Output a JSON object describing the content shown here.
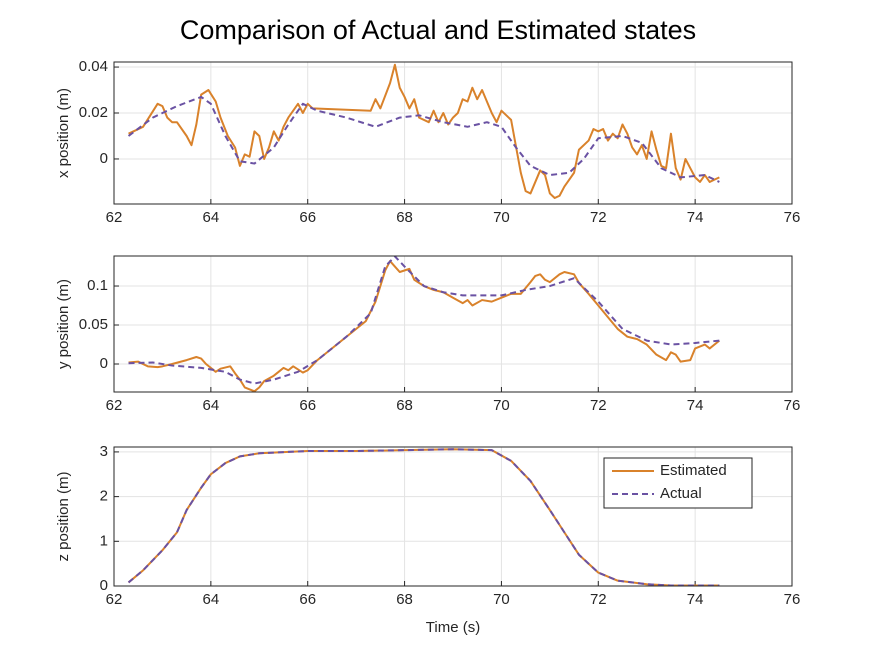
{
  "title": "Comparison of Actual and Estimated states",
  "chart_data": [
    {
      "type": "line",
      "ylabel": "x position (m)",
      "xlim": [
        62,
        76
      ],
      "xticks": [
        62,
        64,
        66,
        68,
        70,
        72,
        74,
        76
      ],
      "ylim": [
        -0.0196,
        0.0422
      ],
      "yticks": [
        0,
        0.02,
        0.04
      ],
      "grid": true,
      "series": [
        {
          "name": "Estimated",
          "color": "#d9822b",
          "style": "solid",
          "x": [
            62.3,
            62.6,
            62.9,
            63.0,
            63.1,
            63.2,
            63.3,
            63.5,
            63.6,
            63.7,
            63.8,
            63.95,
            64.1,
            64.2,
            64.35,
            64.5,
            64.6,
            64.7,
            64.8,
            64.9,
            65.0,
            65.1,
            65.2,
            65.3,
            65.4,
            65.5,
            65.6,
            65.8,
            65.9,
            66.0,
            66.1,
            67.3,
            67.4,
            67.5,
            67.7,
            67.8,
            67.9,
            68.0,
            68.1,
            68.2,
            68.3,
            68.5,
            68.6,
            68.7,
            68.8,
            68.9,
            69.0,
            69.1,
            69.2,
            69.3,
            69.4,
            69.5,
            69.6,
            69.8,
            69.9,
            70.0,
            70.2,
            70.4,
            70.5,
            70.6,
            70.8,
            70.9,
            71.0,
            71.1,
            71.2,
            71.3,
            71.4,
            71.5,
            71.6,
            71.8,
            71.9,
            72.0,
            72.1,
            72.2,
            72.3,
            72.4,
            72.5,
            72.6,
            72.7,
            72.8,
            72.9,
            73.0,
            73.1,
            73.2,
            73.3,
            73.4,
            73.5,
            73.6,
            73.7,
            73.8,
            73.9,
            74.0,
            74.1,
            74.2,
            74.3,
            74.4,
            74.5
          ],
          "values": [
            0.011,
            0.014,
            0.024,
            0.023,
            0.018,
            0.016,
            0.016,
            0.01,
            0.006,
            0.015,
            0.028,
            0.03,
            0.025,
            0.018,
            0.01,
            0.005,
            -0.003,
            0.002,
            0.001,
            0.012,
            0.01,
            0.0,
            0.005,
            0.012,
            0.008,
            0.014,
            0.018,
            0.024,
            0.02,
            0.024,
            0.022,
            0.021,
            0.026,
            0.022,
            0.033,
            0.041,
            0.031,
            0.027,
            0.022,
            0.026,
            0.018,
            0.016,
            0.021,
            0.016,
            0.02,
            0.015,
            0.018,
            0.02,
            0.026,
            0.025,
            0.031,
            0.026,
            0.03,
            0.02,
            0.016,
            0.021,
            0.017,
            -0.006,
            -0.014,
            -0.015,
            -0.005,
            -0.007,
            -0.015,
            -0.017,
            -0.016,
            -0.012,
            -0.009,
            -0.006,
            0.004,
            0.008,
            0.013,
            0.012,
            0.013,
            0.008,
            0.011,
            0.009,
            0.015,
            0.011,
            0.005,
            0.002,
            0.006,
            0.0,
            0.012,
            0.004,
            -0.003,
            -0.004,
            0.011,
            -0.004,
            -0.009,
            0.0,
            -0.004,
            -0.008,
            -0.01,
            -0.007,
            -0.01,
            -0.009,
            -0.008
          ]
        },
        {
          "name": "Actual",
          "color": "#6a52a3",
          "style": "dashed",
          "x": [
            62.3,
            62.8,
            63.3,
            63.8,
            64.0,
            64.3,
            64.6,
            64.9,
            65.3,
            65.6,
            65.9,
            66.2,
            66.8,
            67.4,
            67.9,
            68.3,
            68.8,
            69.3,
            69.7,
            70.0,
            70.3,
            70.6,
            71.0,
            71.4,
            71.7,
            72.0,
            72.5,
            72.9,
            73.3,
            73.7,
            74.2,
            74.5
          ],
          "values": [
            0.01,
            0.018,
            0.023,
            0.027,
            0.024,
            0.01,
            -0.001,
            -0.002,
            0.005,
            0.015,
            0.024,
            0.021,
            0.018,
            0.014,
            0.018,
            0.019,
            0.016,
            0.014,
            0.016,
            0.014,
            0.005,
            -0.003,
            -0.007,
            -0.006,
            0.0,
            0.009,
            0.01,
            0.007,
            -0.004,
            -0.008,
            -0.007,
            -0.01
          ]
        }
      ]
    },
    {
      "type": "line",
      "ylabel": "y position (m)",
      "xlim": [
        62,
        76
      ],
      "xticks": [
        62,
        64,
        66,
        68,
        70,
        72,
        74,
        76
      ],
      "ylim": [
        -0.0359,
        0.1385
      ],
      "yticks": [
        0,
        0.05,
        0.1
      ],
      "grid": true,
      "series": [
        {
          "name": "Estimated",
          "color": "#d9822b",
          "style": "solid",
          "x": [
            62.3,
            62.5,
            62.7,
            62.9,
            63.0,
            63.2,
            63.5,
            63.7,
            63.8,
            63.9,
            64.0,
            64.1,
            64.2,
            64.4,
            64.5,
            64.6,
            64.7,
            64.9,
            65.0,
            65.1,
            65.3,
            65.4,
            65.5,
            65.6,
            65.7,
            65.9,
            66.0,
            66.2,
            67.2,
            67.4,
            67.6,
            67.7,
            67.8,
            67.9,
            68.1,
            68.2,
            68.4,
            68.6,
            68.8,
            69.0,
            69.2,
            69.3,
            69.4,
            69.6,
            69.8,
            70.0,
            70.2,
            70.4,
            70.6,
            70.7,
            70.8,
            70.9,
            71.0,
            71.2,
            71.3,
            71.5,
            71.6,
            71.8,
            72.0,
            72.2,
            72.4,
            72.6,
            72.8,
            73.0,
            73.2,
            73.4,
            73.5,
            73.6,
            73.7,
            73.9,
            74.0,
            74.2,
            74.3,
            74.5
          ],
          "values": [
            0.002,
            0.003,
            -0.003,
            -0.004,
            -0.003,
            0.0,
            0.005,
            0.009,
            0.007,
            0.0,
            -0.005,
            -0.01,
            -0.006,
            -0.003,
            -0.012,
            -0.02,
            -0.03,
            -0.035,
            -0.03,
            -0.022,
            -0.015,
            -0.01,
            -0.005,
            -0.008,
            -0.003,
            -0.011,
            -0.008,
            0.005,
            0.055,
            0.08,
            0.12,
            0.132,
            0.125,
            0.118,
            0.122,
            0.108,
            0.1,
            0.095,
            0.092,
            0.085,
            0.078,
            0.082,
            0.075,
            0.082,
            0.08,
            0.085,
            0.09,
            0.09,
            0.105,
            0.113,
            0.115,
            0.108,
            0.105,
            0.115,
            0.118,
            0.115,
            0.104,
            0.09,
            0.075,
            0.06,
            0.045,
            0.035,
            0.032,
            0.025,
            0.012,
            0.005,
            0.015,
            0.012,
            0.003,
            0.005,
            0.02,
            0.025,
            0.02,
            0.03
          ]
        },
        {
          "name": "Actual",
          "color": "#6a52a3",
          "style": "dashed",
          "x": [
            62.3,
            62.8,
            63.2,
            63.8,
            64.3,
            64.6,
            64.9,
            65.3,
            65.8,
            66.2,
            66.8,
            67.3,
            67.6,
            67.8,
            68.0,
            68.4,
            68.8,
            69.2,
            70.0,
            70.5,
            71.0,
            71.5,
            72.0,
            72.5,
            73.0,
            73.5,
            74.0,
            74.5
          ],
          "values": [
            0.001,
            0.002,
            -0.002,
            -0.005,
            -0.01,
            -0.02,
            -0.025,
            -0.02,
            -0.01,
            0.005,
            0.035,
            0.065,
            0.125,
            0.138,
            0.125,
            0.1,
            0.092,
            0.088,
            0.088,
            0.095,
            0.1,
            0.11,
            0.08,
            0.045,
            0.03,
            0.025,
            0.027,
            0.03
          ]
        }
      ]
    },
    {
      "type": "line",
      "ylabel": "z position (m)",
      "xlabel": "Time (s)",
      "xlim": [
        62,
        76
      ],
      "xticks": [
        62,
        64,
        66,
        68,
        70,
        72,
        74,
        76
      ],
      "ylim": [
        0,
        3.11
      ],
      "yticks": [
        0,
        1,
        2,
        3
      ],
      "grid": true,
      "legend": "northeast",
      "series": [
        {
          "name": "Estimated",
          "color": "#d9822b",
          "style": "solid",
          "x": [
            62.3,
            62.6,
            63.0,
            63.3,
            63.5,
            63.8,
            64.0,
            64.3,
            64.6,
            65.0,
            66.0,
            67.0,
            68.0,
            69.0,
            69.8,
            70.2,
            70.6,
            71.0,
            71.3,
            71.6,
            72.0,
            72.4,
            73.0,
            73.5,
            74.5
          ],
          "values": [
            0.08,
            0.35,
            0.8,
            1.2,
            1.7,
            2.2,
            2.5,
            2.75,
            2.9,
            2.97,
            3.02,
            3.02,
            3.04,
            3.06,
            3.04,
            2.8,
            2.35,
            1.7,
            1.2,
            0.7,
            0.3,
            0.12,
            0.04,
            0.01,
            0.01
          ]
        },
        {
          "name": "Actual",
          "color": "#6a52a3",
          "style": "dashed",
          "x": [
            62.3,
            62.6,
            63.0,
            63.3,
            63.5,
            63.8,
            64.0,
            64.3,
            64.6,
            65.0,
            66.0,
            67.0,
            68.0,
            69.0,
            69.8,
            70.2,
            70.6,
            71.0,
            71.3,
            71.6,
            72.0,
            72.4,
            73.0,
            73.5,
            74.5
          ],
          "values": [
            0.08,
            0.35,
            0.8,
            1.2,
            1.7,
            2.2,
            2.5,
            2.75,
            2.9,
            2.97,
            3.02,
            3.02,
            3.04,
            3.06,
            3.04,
            2.8,
            2.35,
            1.7,
            1.2,
            0.7,
            0.3,
            0.12,
            0.04,
            0.01,
            0.01
          ]
        }
      ]
    }
  ]
}
